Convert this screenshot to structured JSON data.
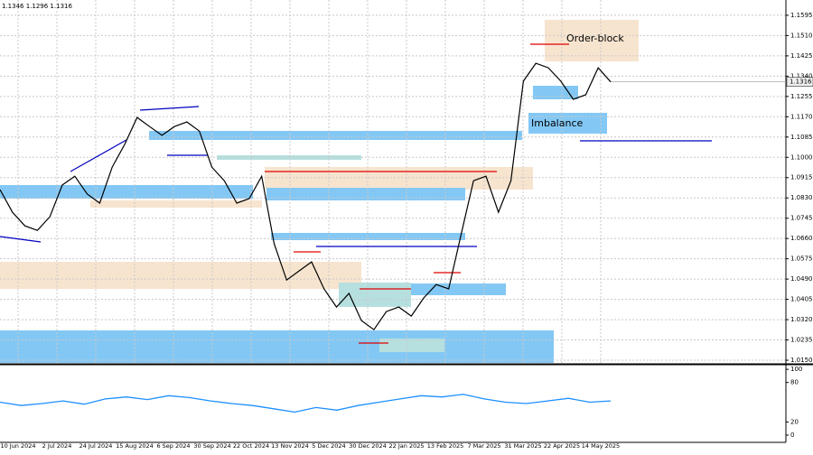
{
  "header": "1.1346 1.1296 1.1316",
  "chart_data": [
    {
      "type": "line",
      "color": "#000000",
      "values": [
        1.0865,
        1.077,
        1.0713,
        1.0694,
        1.0751,
        1.0884,
        1.0921,
        1.0846,
        1.0808,
        1.0959,
        1.1054,
        1.1167,
        1.1129,
        1.1092,
        1.1129,
        1.1148,
        1.111,
        1.0959,
        1.0902,
        1.0808,
        1.0827,
        1.0921,
        1.0638,
        1.0486,
        1.0524,
        1.0562,
        1.0449,
        1.0373,
        1.043,
        1.0316,
        1.0278,
        1.0354,
        1.0373,
        1.0335,
        1.0411,
        1.0467,
        1.0449,
        1.0676,
        1.0902,
        1.0921,
        1.077,
        1.0902,
        1.1319,
        1.1394,
        1.1375,
        1.1319,
        1.1243,
        1.1262,
        1.1375,
        1.1316
      ],
      "ylim": [
        1.0135,
        1.1659
      ],
      "yticks": [
        {
          "value": 1.1595,
          "label": "1.1595"
        },
        {
          "value": 1.151,
          "label": "1.1510"
        },
        {
          "value": 1.1425,
          "label": "1.1425"
        },
        {
          "value": 1.134,
          "label": "1.1340"
        },
        {
          "value": 1.1255,
          "label": "1.1255"
        },
        {
          "value": 1.117,
          "label": "1.1170"
        },
        {
          "value": 1.1085,
          "label": "1.1085"
        },
        {
          "value": 1.1,
          "label": "1.1000"
        },
        {
          "value": 1.0915,
          "label": "1.0915"
        },
        {
          "value": 1.083,
          "label": "1.0830"
        },
        {
          "value": 1.0745,
          "label": "1.0745"
        },
        {
          "value": 1.066,
          "label": "1.0660"
        },
        {
          "value": 1.0575,
          "label": "1.0575"
        },
        {
          "value": 1.049,
          "label": "1.0490"
        },
        {
          "value": 1.0405,
          "label": "1.0405"
        },
        {
          "value": 1.032,
          "label": "1.0320"
        },
        {
          "value": 1.0235,
          "label": "1.0235"
        },
        {
          "value": 1.015,
          "label": "1.0150"
        }
      ],
      "last_price": {
        "value": 1.1316,
        "label": "1.1316"
      },
      "annotations": [
        "Order-block",
        "Imbalance"
      ],
      "date_labels": [
        "10 Jun 2024",
        "2 Jul 2024",
        "24 Jul 2024",
        "15 Aug 2024",
        "6 Sep 2024",
        "30 Sep 2024",
        "22 Oct 2024",
        "13 Nov 2024",
        "5 Dec 2024",
        "30 Dec 2024",
        "22 Jan 2025",
        "13 Feb 2025",
        "7 Mar 2025",
        "31 Mar 2025",
        "22 Apr 2025",
        "14 May 2025"
      ],
      "grid": true
    },
    {
      "type": "line",
      "color": "#1e90ff",
      "values": [
        50,
        45,
        48,
        52,
        47,
        55,
        58,
        54,
        60,
        57,
        52,
        48,
        45,
        40,
        35,
        42,
        38,
        45,
        50,
        55,
        60,
        58,
        62,
        55,
        50,
        48,
        52,
        56,
        50,
        52
      ],
      "ylim": [
        -11,
        107
      ],
      "yticks": [
        100,
        80,
        20,
        0
      ]
    }
  ]
}
